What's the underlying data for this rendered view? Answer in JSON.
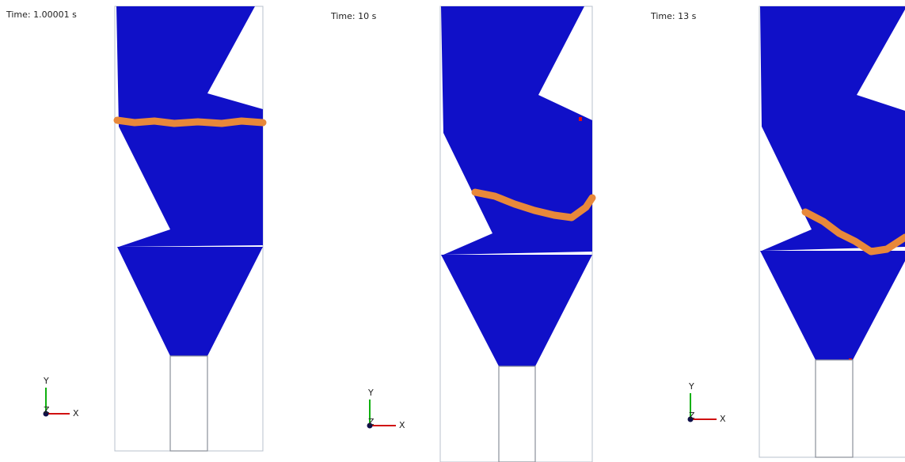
{
  "panels": [
    {
      "time": "Time: 1.00001 s",
      "axes": {
        "y": "Y",
        "z": "Z",
        "x": "X"
      }
    },
    {
      "time": "Time: 10 s",
      "axes": {
        "y": "Y",
        "z": "Z",
        "x": "X"
      }
    },
    {
      "time": "Time: 13 s",
      "axes": {
        "y": "Y",
        "z": "Z",
        "x": "X"
      }
    }
  ]
}
